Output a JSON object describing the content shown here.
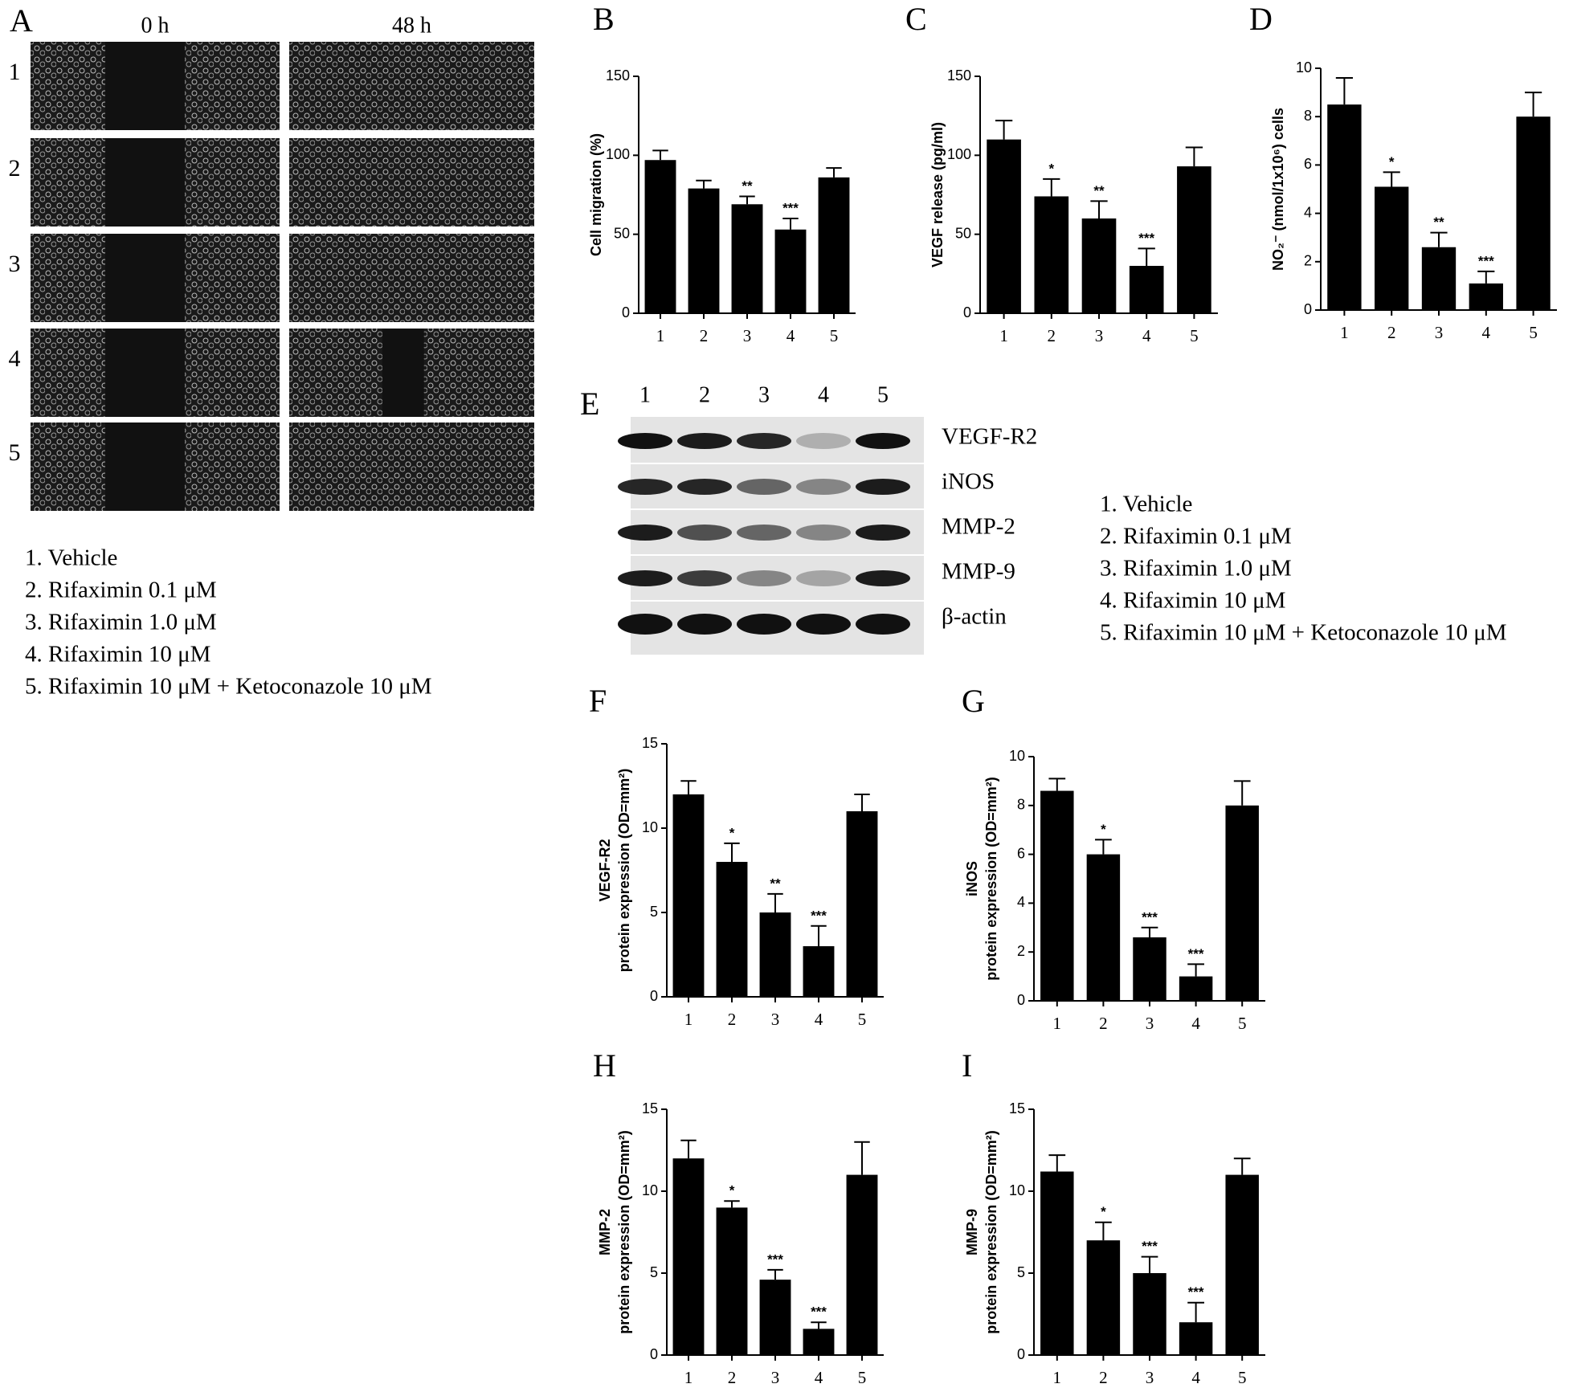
{
  "figure": {
    "panel_a": {
      "letter": "A",
      "columns": [
        "0 h",
        "48 h"
      ],
      "rows": [
        "1",
        "2",
        "3",
        "4",
        "5"
      ]
    },
    "panel_e": {
      "letter": "E",
      "lanes": [
        "1",
        "2",
        "3",
        "4",
        "5"
      ],
      "bands": [
        "VEGF-R2",
        "iNOS",
        "MMP-2",
        "MMP-9",
        "β-actin"
      ]
    },
    "legend_a": [
      "1. Vehicle",
      "2. Rifaximin 0.1 μM",
      "3. Rifaximin 1.0 μM",
      "4. Rifaximin 10 μM",
      "5. Rifaximin 10 μM + Ketoconazole 10 μM"
    ],
    "legend_e": [
      "1. Vehicle",
      "2. Rifaximin 0.1 μM",
      "3. Rifaximin 1.0 μM",
      "4. Rifaximin 10 μM",
      "5. Rifaximin 10 μM + Ketoconazole 10 μM"
    ]
  },
  "chart_data": [
    {
      "type": "bar",
      "panel": "B",
      "ylabel": [
        "Cell migration (%)"
      ],
      "categories": [
        "1",
        "2",
        "3",
        "4",
        "5"
      ],
      "values": [
        97,
        79,
        69,
        53,
        86
      ],
      "errors": [
        6,
        5,
        5,
        7,
        6
      ],
      "significance": [
        null,
        null,
        "**",
        "***",
        null
      ],
      "color": "#000000",
      "ylim": [
        0,
        150
      ],
      "yticks": [
        0,
        50,
        100,
        150
      ]
    },
    {
      "type": "bar",
      "panel": "C",
      "ylabel": [
        "VEGF release (pg/ml)"
      ],
      "categories": [
        "1",
        "2",
        "3",
        "4",
        "5"
      ],
      "values": [
        110,
        74,
        60,
        30,
        93
      ],
      "errors": [
        12,
        11,
        11,
        11,
        12
      ],
      "significance": [
        null,
        "*",
        "**",
        "***",
        null
      ],
      "color": "#000000",
      "ylim": [
        0,
        150
      ],
      "yticks": [
        0,
        50,
        100,
        150
      ]
    },
    {
      "type": "bar",
      "panel": "D",
      "ylabel": [
        "NO₂⁻ (nmol/1x10⁶) cells"
      ],
      "categories": [
        "1",
        "2",
        "3",
        "4",
        "5"
      ],
      "values": [
        8.5,
        5.1,
        2.6,
        1.1,
        8.0
      ],
      "errors": [
        1.1,
        0.6,
        0.6,
        0.5,
        1.0
      ],
      "significance": [
        null,
        "*",
        "**",
        "***",
        null
      ],
      "color": "#000000",
      "ylim": [
        0,
        10
      ],
      "yticks": [
        0,
        2,
        4,
        6,
        8,
        10
      ]
    },
    {
      "type": "bar",
      "panel": "F",
      "ylabel": [
        "VEGF-R2",
        "protein expression (OD=mm²)"
      ],
      "categories": [
        "1",
        "2",
        "3",
        "4",
        "5"
      ],
      "values": [
        12,
        8,
        5,
        3,
        11
      ],
      "errors": [
        0.8,
        1.1,
        1.1,
        1.2,
        1.0
      ],
      "significance": [
        null,
        "*",
        "**",
        "***",
        null
      ],
      "color": "#000000",
      "ylim": [
        0,
        15
      ],
      "yticks": [
        0,
        5,
        10,
        15
      ]
    },
    {
      "type": "bar",
      "panel": "G",
      "ylabel": [
        "iNOS",
        "protein expression (OD=mm²)"
      ],
      "categories": [
        "1",
        "2",
        "3",
        "4",
        "5"
      ],
      "values": [
        8.6,
        6.0,
        2.6,
        1.0,
        8.0
      ],
      "errors": [
        0.5,
        0.6,
        0.4,
        0.5,
        1.0
      ],
      "significance": [
        null,
        "*",
        "***",
        "***",
        null
      ],
      "color": "#000000",
      "ylim": [
        0,
        10
      ],
      "yticks": [
        0,
        2,
        4,
        6,
        8,
        10
      ]
    },
    {
      "type": "bar",
      "panel": "H",
      "ylabel": [
        "MMP-2",
        "protein expression (OD=mm²)"
      ],
      "categories": [
        "1",
        "2",
        "3",
        "4",
        "5"
      ],
      "values": [
        12,
        9,
        4.6,
        1.6,
        11
      ],
      "errors": [
        1.1,
        0.4,
        0.6,
        0.4,
        2.0
      ],
      "significance": [
        null,
        "*",
        "***",
        "***",
        null
      ],
      "color": "#000000",
      "ylim": [
        0,
        15
      ],
      "yticks": [
        0,
        5,
        10,
        15
      ]
    },
    {
      "type": "bar",
      "panel": "I",
      "ylabel": [
        "MMP-9",
        "protein expression (OD=mm²)"
      ],
      "categories": [
        "1",
        "2",
        "3",
        "4",
        "5"
      ],
      "values": [
        11.2,
        7.0,
        5.0,
        2.0,
        11.0
      ],
      "errors": [
        1.0,
        1.1,
        1.0,
        1.2,
        1.0
      ],
      "significance": [
        null,
        "*",
        "***",
        "***",
        null
      ],
      "color": "#000000",
      "ylim": [
        0,
        15
      ],
      "yticks": [
        0,
        5,
        10,
        15
      ]
    }
  ]
}
